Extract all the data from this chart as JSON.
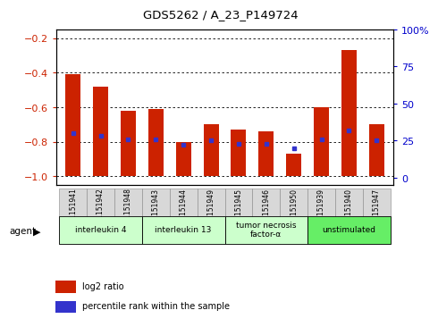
{
  "title": "GDS5262 / A_23_P149724",
  "samples": [
    "GSM1151941",
    "GSM1151942",
    "GSM1151948",
    "GSM1151943",
    "GSM1151944",
    "GSM1151949",
    "GSM1151945",
    "GSM1151946",
    "GSM1151950",
    "GSM1151939",
    "GSM1151940",
    "GSM1151947"
  ],
  "log2_ratio": [
    -0.41,
    -0.48,
    -0.62,
    -0.61,
    -0.8,
    -0.7,
    -0.73,
    -0.74,
    -0.87,
    -0.6,
    -0.27,
    -0.7
  ],
  "percentile": [
    30,
    28,
    26,
    26,
    22,
    25,
    23,
    23,
    20,
    26,
    32,
    25
  ],
  "agents": [
    {
      "label": "interleukin 4",
      "start": 0,
      "end": 3,
      "color": "#ccffcc"
    },
    {
      "label": "interleukin 13",
      "start": 3,
      "end": 6,
      "color": "#ccffcc"
    },
    {
      "label": "tumor necrosis\nfactor-α",
      "start": 6,
      "end": 9,
      "color": "#ccffcc"
    },
    {
      "label": "unstimulated",
      "start": 9,
      "end": 12,
      "color": "#66ee66"
    }
  ],
  "ylim_left": [
    -1.05,
    -0.15
  ],
  "ylim_right": [
    -5,
    100
  ],
  "yticks_left": [
    -1.0,
    -0.8,
    -0.6,
    -0.4,
    -0.2
  ],
  "yticks_right": [
    0,
    25,
    50,
    75,
    100
  ],
  "bar_color": "#cc2200",
  "dot_color": "#3333cc",
  "bg_color": "#ffffff",
  "grid_color": "#000000",
  "tick_label_color_left": "#cc2200",
  "tick_label_color_right": "#0000cc",
  "agent_label": "agent",
  "legend_items": [
    {
      "color": "#cc2200",
      "label": "log2 ratio"
    },
    {
      "color": "#3333cc",
      "label": "percentile rank within the sample"
    }
  ],
  "bar_bottom": -1.0,
  "bar_width": 0.55
}
